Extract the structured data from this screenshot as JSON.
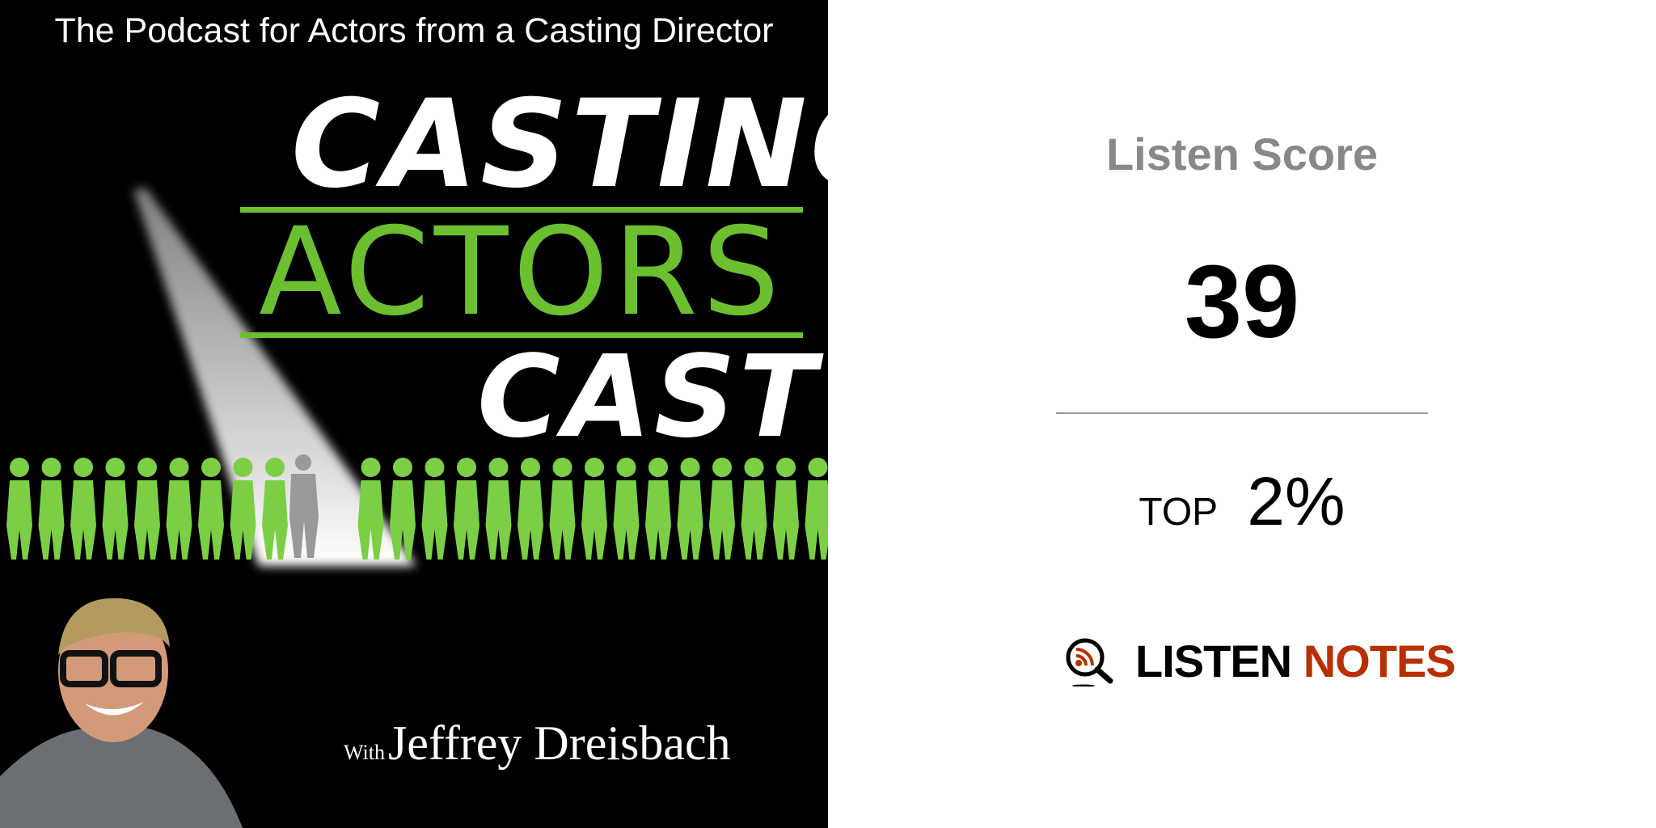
{
  "cover": {
    "tagline": "The Podcast for Actors from a Casting Director",
    "title_line1": "CASTING",
    "title_line2": "ACTORS",
    "title_line3": "CAST",
    "host_prefix": "With",
    "host_name": "Jeffrey Dreisbach",
    "colors": {
      "background": "#000000",
      "accent_green": "#6cbf2f",
      "text": "#ffffff"
    }
  },
  "score_panel": {
    "title": "Listen Score",
    "score": "39",
    "rank_label": "TOP",
    "rank_value": "2%",
    "brand_word1": "LISTEN",
    "brand_word2": "NOTES",
    "brand_icon": "magnifier-rss-icon",
    "colors": {
      "title": "#888888",
      "brand_accent": "#b83000"
    }
  }
}
